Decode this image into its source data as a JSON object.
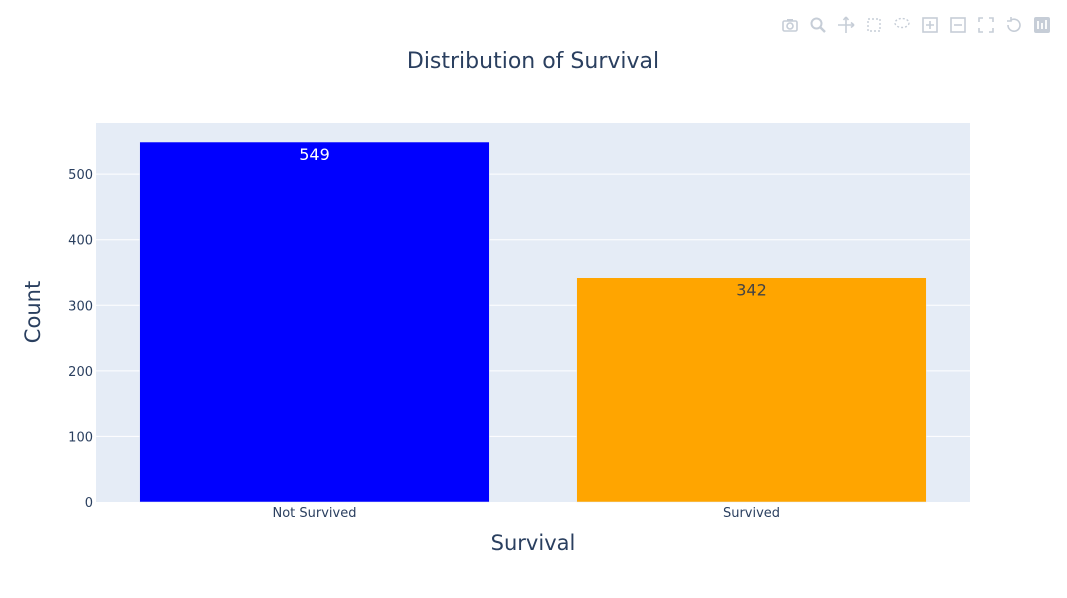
{
  "modebar": {
    "buttons": [
      {
        "name": "camera-icon"
      },
      {
        "name": "zoom-icon"
      },
      {
        "name": "pan-icon"
      },
      {
        "name": "box-select-icon"
      },
      {
        "name": "lasso-select-icon"
      },
      {
        "name": "zoom-in-icon"
      },
      {
        "name": "zoom-out-icon"
      },
      {
        "name": "autoscale-icon"
      },
      {
        "name": "reset-axes-icon"
      },
      {
        "name": "plotly-logo-icon"
      }
    ]
  },
  "chart_data": {
    "type": "bar",
    "title": "Distribution of Survival",
    "xlabel": "Survival",
    "ylabel": "Count",
    "categories": [
      "Not Survived",
      "Survived"
    ],
    "values": [
      549,
      342
    ],
    "value_labels": [
      "549",
      "342"
    ],
    "colors": [
      "#0000ff",
      "#ffa500"
    ],
    "label_colors": [
      "#ffffff",
      "#444444"
    ],
    "ylim": [
      0,
      578
    ],
    "yticks": [
      0,
      100,
      200,
      300,
      400,
      500
    ],
    "grid": true,
    "plot_background": "#e5ecf6",
    "legend": "none"
  }
}
